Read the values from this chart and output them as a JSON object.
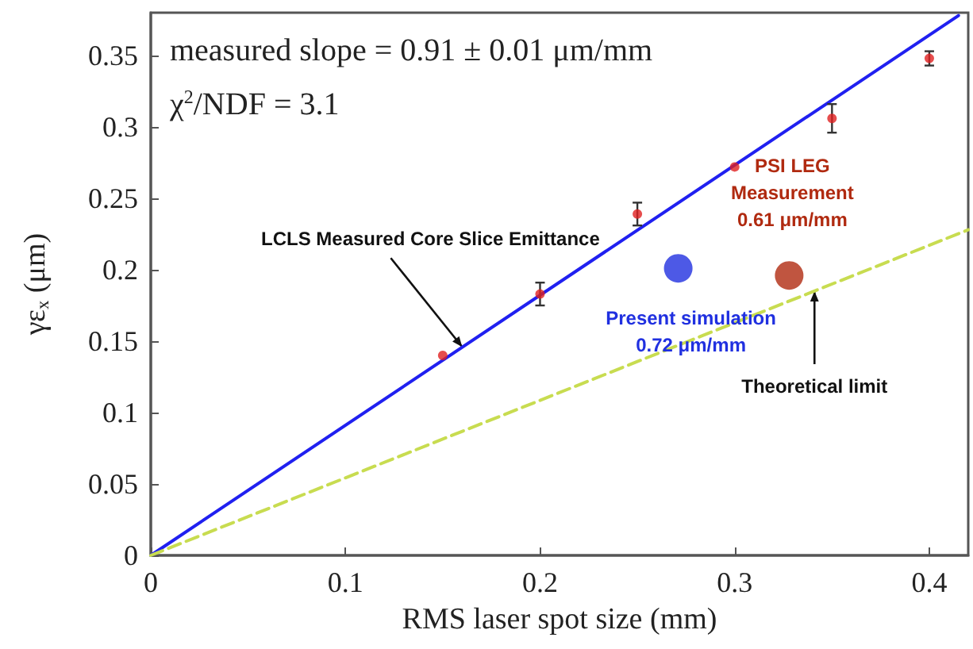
{
  "chart_data": {
    "type": "scatter",
    "xlabel": "RMS laser spot size (mm)",
    "ylabel": "γε$_{x}$ (μm)",
    "xlim": [
      0,
      0.42
    ],
    "ylim": [
      0,
      0.38
    ],
    "xticks": [
      0,
      0.1,
      0.2,
      0.3,
      0.4
    ],
    "yticks": [
      0,
      0.05,
      0.1,
      0.15,
      0.2,
      0.25,
      0.3,
      0.35
    ],
    "grid": false,
    "series": [
      {
        "color": "#e02020",
        "x": [
          0.15,
          0.2,
          0.25,
          0.3,
          0.35,
          0.4
        ],
        "values": [
          0.14,
          0.183,
          0.239,
          0.272,
          0.306,
          0.348
        ],
        "errors": [
          null,
          0.008,
          0.008,
          null,
          0.01,
          0.005
        ],
        "marker": "circle"
      },
      {
        "type": "line",
        "color": "#2020f0",
        "x": [
          0,
          0.415
        ],
        "values": [
          0,
          0.378
        ],
        "line_style": "solid",
        "marker": "none"
      },
      {
        "type": "line",
        "color": "#c8dc50",
        "x": [
          0,
          0.42
        ],
        "values": [
          0,
          0.228
        ],
        "line_style": "dashed",
        "marker": "none"
      },
      {
        "color": "#2030e0",
        "x": [
          0.271
        ],
        "values": [
          0.201
        ],
        "marker": "circle"
      },
      {
        "color": "#b02a10",
        "x": [
          0.328
        ],
        "values": [
          0.196
        ],
        "marker": "circle"
      }
    ],
    "annotations": [
      "measured slope = 0.91 ± 0.01 μm/mm",
      "χ$^{2}$/NDF = 3.1",
      {
        "text": "LCLS Measured Core Slice Emittance",
        "x": 0.16,
        "y": 0.146
      },
      {
        "text": "Present simulation\n0.72 μm/mm",
        "x": 0.271,
        "y": 0.201
      },
      {
        "text": "PSI LEG\nMeasurement\n0.61 μm/mm",
        "x": 0.328,
        "y": 0.196
      },
      {
        "text": "Theoretical limit",
        "x": 0.341,
        "y": 0.185
      }
    ]
  }
}
